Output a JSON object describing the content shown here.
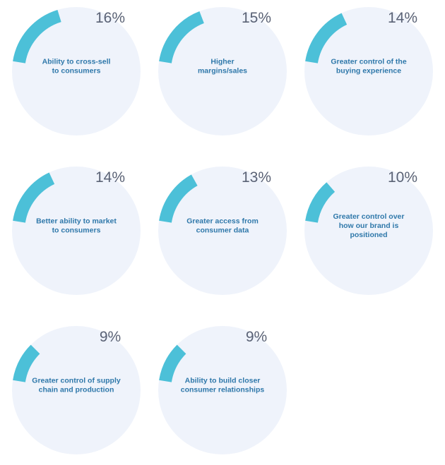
{
  "colors": {
    "track": "#eff3fb",
    "arc": "#4cc0d8",
    "label": "#2f78aa",
    "percent": "#5a6275"
  },
  "chart_data": {
    "type": "pie",
    "unit": "%",
    "items": [
      {
        "value": 16,
        "display": "16%",
        "label_lines": [
          "Ability to cross-sell",
          "to consumers"
        ]
      },
      {
        "value": 15,
        "display": "15%",
        "label_lines": [
          "Higher",
          "margins/sales"
        ]
      },
      {
        "value": 14,
        "display": "14%",
        "label_lines": [
          "Greater control of the",
          "buying experience"
        ]
      },
      {
        "value": 14,
        "display": "14%",
        "label_lines": [
          "Better ability to market",
          "to consumers"
        ]
      },
      {
        "value": 13,
        "display": "13%",
        "label_lines": [
          "Greater access from",
          "consumer data"
        ]
      },
      {
        "value": 10,
        "display": "10%",
        "label_lines": [
          "Greater control over",
          "how our brand is",
          "positioned"
        ]
      },
      {
        "value": 9,
        "display": "9%",
        "label_lines": [
          "Greater control of supply",
          "chain and production"
        ]
      },
      {
        "value": 9,
        "display": "9%",
        "label_lines": [
          "Ability to build closer",
          "consumer relationships"
        ]
      }
    ]
  }
}
